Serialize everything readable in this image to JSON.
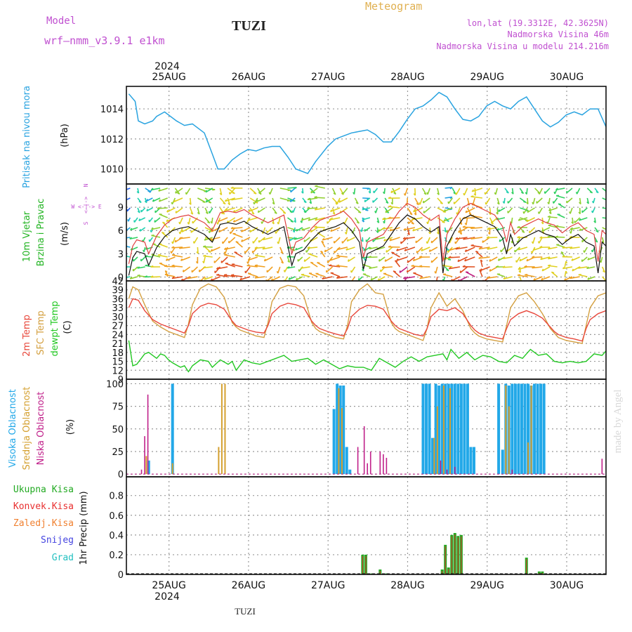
{
  "header": {
    "model_label": "Model",
    "model_name": "wrf–nmm_v3.9.1 e1km",
    "station": "TUZI",
    "title": "Meteogram",
    "coords": "lon,lat (19.3312E, 42.3625N)",
    "elevation": "Nadmorska Visina 46m",
    "model_elevation": "Nadmorska Visina u modelu 214.216m",
    "watermark": "made by Angel",
    "footer_station": "TUZI",
    "year": "2024"
  },
  "colors": {
    "pressure": "#29a3e0",
    "wind_title": "#22b422",
    "temp2m": "#e8483c",
    "sfc": "#d4a040",
    "dewpt": "#22c822",
    "high_cloud": "#22a8e8",
    "mid_cloud": "#d4a030",
    "low_cloud": "#c0208a",
    "total_precip": "#22aa22",
    "conv_precip": "#e83030",
    "frz_precip": "#f08030",
    "snow": "#4444e0",
    "hail": "#22c0c0",
    "header_purple": "#c050d0",
    "header_gold": "#e0b050",
    "grid": "#999999"
  },
  "chart_data": [
    {
      "panel": "pressure",
      "type": "line",
      "ylabel": "(hPa)",
      "title": "Pritisak na nivou mora",
      "ylim": [
        1009,
        1015.5
      ],
      "yticks": [
        1010,
        1012,
        1014
      ],
      "categories": [
        "25AUG",
        "26AUG",
        "27AUG",
        "28AUG",
        "29AUG",
        "30AUG"
      ],
      "x_range_days": [
        24.47,
        30.5
      ],
      "series": [
        {
          "x": [
            24.5,
            24.58,
            24.62,
            24.7,
            24.8,
            24.85,
            24.95,
            25.1,
            25.2,
            25.3,
            25.45,
            25.55,
            25.62,
            25.7,
            25.8,
            25.9,
            26.0,
            26.1,
            26.2,
            26.3,
            26.4,
            26.5,
            26.6,
            26.75,
            26.85,
            27.0,
            27.1,
            27.2,
            27.3,
            27.4,
            27.5,
            27.6,
            27.7,
            27.8,
            27.9,
            28.0,
            28.1,
            28.2,
            28.3,
            28.4,
            28.5,
            28.6,
            28.7,
            28.8,
            28.9,
            29.0,
            29.1,
            29.2,
            29.3,
            29.4,
            29.5,
            29.6,
            29.7,
            29.8,
            29.9,
            30.0,
            30.1,
            30.2,
            30.3,
            30.4,
            30.5
          ],
          "values": [
            1015.0,
            1014.5,
            1013.2,
            1013.0,
            1013.2,
            1013.5,
            1013.8,
            1013.2,
            1012.9,
            1013.0,
            1012.4,
            1011.0,
            1010.0,
            1010.0,
            1010.6,
            1011.0,
            1011.3,
            1011.2,
            1011.4,
            1011.5,
            1011.5,
            1010.8,
            1010.0,
            1009.7,
            1010.5,
            1011.5,
            1012.0,
            1012.2,
            1012.4,
            1012.5,
            1012.6,
            1012.3,
            1011.8,
            1011.8,
            1012.5,
            1013.3,
            1014.0,
            1014.2,
            1014.6,
            1015.1,
            1014.8,
            1014.0,
            1013.3,
            1013.2,
            1013.5,
            1014.2,
            1014.5,
            1014.2,
            1014.0,
            1014.5,
            1014.8,
            1014.0,
            1013.2,
            1012.8,
            1013.1,
            1013.6,
            1013.8,
            1013.6,
            1014.0,
            1014.0,
            1012.8
          ]
        }
      ]
    },
    {
      "panel": "wind",
      "type": "line",
      "ylabel": "(m/s)",
      "title": "10m Vjetar Brzina i Pravac",
      "compass": "W <-|-> E",
      "compass_n": "N",
      "compass_s": "S",
      "ylim": [
        -0.5,
        12
      ],
      "yticks": [
        0,
        3,
        6,
        9
      ],
      "x_range_days": [
        24.47,
        30.5
      ],
      "series": [
        {
          "name": "speed",
          "x": [
            24.5,
            24.55,
            24.6,
            24.7,
            24.75,
            24.85,
            24.95,
            25.05,
            25.15,
            25.25,
            25.35,
            25.45,
            25.55,
            25.65,
            25.75,
            25.85,
            25.95,
            26.05,
            26.15,
            26.25,
            26.35,
            26.45,
            26.55,
            26.6,
            26.7,
            26.8,
            26.9,
            27.0,
            27.1,
            27.2,
            27.3,
            27.4,
            27.45,
            27.5,
            27.6,
            27.7,
            27.8,
            27.9,
            28.0,
            28.1,
            28.2,
            28.3,
            28.4,
            28.45,
            28.5,
            28.6,
            28.7,
            28.8,
            28.9,
            29.0,
            29.1,
            29.2,
            29.25,
            29.3,
            29.35,
            29.45,
            29.55,
            29.65,
            29.75,
            29.85,
            29.95,
            30.05,
            30.15,
            30.25,
            30.35,
            30.4,
            30.45,
            30.5
          ],
          "values": [
            0.2,
            2.5,
            3.3,
            3.0,
            1.5,
            3.8,
            5.2,
            6.0,
            6.3,
            6.5,
            6.0,
            5.5,
            4.5,
            6.8,
            7.0,
            6.8,
            7.2,
            6.5,
            6.0,
            5.5,
            6.0,
            6.5,
            1.5,
            3.0,
            3.5,
            4.8,
            5.8,
            6.2,
            6.5,
            7.0,
            6.0,
            4.5,
            1.0,
            3.0,
            3.5,
            4.0,
            5.5,
            7.0,
            8.0,
            7.5,
            6.5,
            5.8,
            6.5,
            0.5,
            4.0,
            6.0,
            7.5,
            8.0,
            7.5,
            7.0,
            6.5,
            5.0,
            3.0,
            5.5,
            4.0,
            5.0,
            5.5,
            6.0,
            5.5,
            5.2,
            4.2,
            5.0,
            5.5,
            4.5,
            4.0,
            0.5,
            4.5,
            4.0
          ]
        }
      ]
    },
    {
      "panel": "temperature",
      "type": "line",
      "ylabel": "(C)",
      "legend": [
        "2m Temp",
        "SFC Temp",
        "dewpt Temp"
      ],
      "ylim": [
        9,
        42
      ],
      "yticks": [
        9,
        12,
        15,
        18,
        21,
        24,
        27,
        30,
        33,
        36,
        39,
        42
      ],
      "x_range_days": [
        24.47,
        30.5
      ],
      "series": [
        {
          "name": "2m Temp",
          "x": [
            24.5,
            24.55,
            24.62,
            24.7,
            24.8,
            24.9,
            25.0,
            25.1,
            25.2,
            25.25,
            25.3,
            25.4,
            25.5,
            25.6,
            25.7,
            25.8,
            25.85,
            25.9,
            26.0,
            26.1,
            26.2,
            26.25,
            26.3,
            26.4,
            26.5,
            26.6,
            26.7,
            26.8,
            26.85,
            26.9,
            27.0,
            27.1,
            27.2,
            27.25,
            27.3,
            27.4,
            27.5,
            27.6,
            27.7,
            27.8,
            27.85,
            27.9,
            28.0,
            28.1,
            28.2,
            28.25,
            28.3,
            28.4,
            28.5,
            28.6,
            28.7,
            28.8,
            28.85,
            28.9,
            29.0,
            29.1,
            29.2,
            29.25,
            29.3,
            29.4,
            29.5,
            29.6,
            29.7,
            29.8,
            29.85,
            29.9,
            30.0,
            30.1,
            30.2,
            30.25,
            30.3,
            30.4,
            30.5
          ],
          "values": [
            33.0,
            36.0,
            35.5,
            32.0,
            29.0,
            27.5,
            26.5,
            25.5,
            24.5,
            27.0,
            31.0,
            33.5,
            34.5,
            34.0,
            32.5,
            28.5,
            27.0,
            26.5,
            25.5,
            24.8,
            24.5,
            27.0,
            31.0,
            33.5,
            34.5,
            34.0,
            33.0,
            28.5,
            27.0,
            26.0,
            25.0,
            24.2,
            23.5,
            26.0,
            30.0,
            32.5,
            33.8,
            33.5,
            32.5,
            28.5,
            27.0,
            26.0,
            25.0,
            24.0,
            23.5,
            26.0,
            30.0,
            32.5,
            32.0,
            33.0,
            31.0,
            27.0,
            25.5,
            24.5,
            23.5,
            23.0,
            22.5,
            26.0,
            29.0,
            31.0,
            32.0,
            31.0,
            29.5,
            26.5,
            25.0,
            24.0,
            23.0,
            22.5,
            21.8,
            26.0,
            29.0,
            31.0,
            32.0
          ]
        },
        {
          "name": "SFC Temp",
          "x": [
            24.5,
            24.55,
            24.62,
            24.7,
            24.8,
            24.9,
            25.0,
            25.1,
            25.2,
            25.25,
            25.3,
            25.4,
            25.5,
            25.6,
            25.7,
            25.8,
            25.85,
            25.9,
            26.0,
            26.1,
            26.2,
            26.25,
            26.3,
            26.4,
            26.5,
            26.6,
            26.7,
            26.8,
            26.85,
            26.9,
            27.0,
            27.1,
            27.2,
            27.25,
            27.3,
            27.4,
            27.5,
            27.6,
            27.7,
            27.8,
            27.85,
            27.9,
            28.0,
            28.1,
            28.2,
            28.25,
            28.3,
            28.4,
            28.5,
            28.6,
            28.7,
            28.8,
            28.85,
            28.9,
            29.0,
            29.1,
            29.2,
            29.25,
            29.3,
            29.4,
            29.5,
            29.6,
            29.7,
            29.8,
            29.85,
            29.9,
            30.0,
            30.1,
            30.2,
            30.25,
            30.3,
            30.4,
            30.5
          ],
          "values": [
            36.0,
            40.0,
            39.0,
            34.0,
            28.5,
            26.5,
            25.0,
            24.0,
            23.0,
            27.5,
            34.0,
            39.5,
            41.0,
            40.0,
            36.5,
            28.0,
            26.5,
            25.5,
            24.5,
            23.5,
            23.0,
            28.0,
            35.0,
            39.5,
            40.5,
            40.0,
            37.0,
            28.0,
            26.0,
            25.0,
            24.0,
            23.0,
            22.5,
            27.0,
            35.0,
            39.0,
            41.0,
            38.0,
            37.5,
            28.0,
            26.0,
            25.0,
            24.0,
            23.0,
            22.0,
            26.0,
            33.0,
            38.0,
            33.5,
            36.0,
            32.0,
            26.0,
            24.5,
            23.5,
            22.5,
            22.0,
            21.5,
            27.0,
            33.0,
            37.0,
            38.0,
            35.0,
            31.0,
            26.0,
            24.5,
            23.0,
            22.0,
            21.5,
            21.0,
            27.0,
            33.0,
            37.0,
            38.0
          ]
        },
        {
          "name": "dewpt Temp",
          "x": [
            24.5,
            24.55,
            24.6,
            24.7,
            24.75,
            24.85,
            24.9,
            24.95,
            25.0,
            25.05,
            25.15,
            25.2,
            25.25,
            25.3,
            25.4,
            25.5,
            25.55,
            25.65,
            25.75,
            25.8,
            25.85,
            25.95,
            26.05,
            26.15,
            26.25,
            26.35,
            26.45,
            26.55,
            26.65,
            26.75,
            26.85,
            26.95,
            27.05,
            27.15,
            27.25,
            27.35,
            27.45,
            27.55,
            27.65,
            27.75,
            27.85,
            27.95,
            28.05,
            28.15,
            28.25,
            28.35,
            28.45,
            28.5,
            28.55,
            28.65,
            28.75,
            28.85,
            28.95,
            29.05,
            29.15,
            29.25,
            29.35,
            29.45,
            29.55,
            29.65,
            29.75,
            29.85,
            29.95,
            30.05,
            30.15,
            30.25,
            30.35,
            30.45,
            30.5
          ],
          "values": [
            22.0,
            13.5,
            14.0,
            17.5,
            18.0,
            16.0,
            17.5,
            17.0,
            15.5,
            14.5,
            13.0,
            13.5,
            11.5,
            13.5,
            15.5,
            15.0,
            13.0,
            15.5,
            14.0,
            15.0,
            12.0,
            15.5,
            14.5,
            14.0,
            15.0,
            16.0,
            17.0,
            15.0,
            15.5,
            16.0,
            14.0,
            15.5,
            14.0,
            12.5,
            13.5,
            13.0,
            13.0,
            12.0,
            16.0,
            14.5,
            13.0,
            15.0,
            16.5,
            15.0,
            16.5,
            17.0,
            17.5,
            15.5,
            19.0,
            16.0,
            18.0,
            15.5,
            17.0,
            16.5,
            15.0,
            14.5,
            17.0,
            16.0,
            19.0,
            17.0,
            17.5,
            15.0,
            14.5,
            15.0,
            14.5,
            15.0,
            17.5,
            17.0,
            18.5
          ]
        }
      ]
    },
    {
      "panel": "clouds",
      "type": "bar",
      "ylabel": "(%)",
      "legend": [
        "Visoka Oblacnost",
        "Srednja Oblacnost",
        "Niska Oblacnost"
      ],
      "ylim": [
        -3,
        105
      ],
      "yticks": [
        0,
        25,
        50,
        75,
        100
      ],
      "x_range_days": [
        24.47,
        30.5
      ],
      "series": [
        {
          "name": "Visoka Oblacnost",
          "x": [
            24.75,
            25.05,
            27.08,
            27.12,
            27.16,
            27.2,
            27.24,
            27.28,
            28.2,
            28.24,
            28.28,
            28.32,
            28.36,
            28.4,
            28.44,
            28.48,
            28.52,
            28.56,
            28.6,
            28.64,
            28.68,
            28.72,
            28.76,
            28.8,
            28.84,
            29.15,
            29.2,
            29.24,
            29.28,
            29.32,
            29.36,
            29.4,
            29.44,
            29.48,
            29.52,
            29.56,
            29.6,
            29.64,
            29.68,
            29.72
          ],
          "values": [
            15,
            100,
            72,
            100,
            98,
            98,
            30,
            5,
            100,
            100,
            100,
            40,
            100,
            98,
            100,
            100,
            100,
            100,
            100,
            100,
            100,
            100,
            100,
            30,
            30,
            100,
            27,
            100,
            98,
            100,
            100,
            100,
            100,
            100,
            100,
            98,
            100,
            100,
            100,
            100
          ]
        },
        {
          "name": "Srednja Oblacnost",
          "x": [
            24.72,
            25.05,
            25.63,
            25.67,
            25.71,
            27.14,
            27.18,
            28.34,
            28.38,
            28.46,
            28.54,
            29.24,
            29.28,
            29.52,
            29.56
          ],
          "values": [
            20,
            12,
            30,
            100,
            100,
            95,
            73,
            40,
            75,
            98,
            95,
            98,
            75,
            35,
            98
          ]
        },
        {
          "name": "Niska Oblacnost",
          "x": [
            24.66,
            24.7,
            24.74,
            27.38,
            27.46,
            27.5,
            27.54,
            27.66,
            27.7,
            27.74,
            28.42,
            28.5,
            28.6,
            29.32,
            30.45
          ],
          "values": [
            5,
            42,
            88,
            30,
            53,
            12,
            25,
            25,
            22,
            18,
            15,
            5,
            8,
            5,
            17
          ]
        }
      ]
    },
    {
      "panel": "precipitation",
      "type": "bar",
      "ylabel": "1hr Precip (mm)",
      "legend": [
        "Ukupna Kisa",
        "Konvek.Kisa",
        "Zaledj.Kisa",
        "Snijeg",
        "Grad"
      ],
      "ylim": [
        0,
        0.99
      ],
      "yticks": [
        0,
        0.2,
        0.4,
        0.6,
        0.8
      ],
      "categories": [
        "25AUG",
        "26AUG",
        "27AUG",
        "28AUG",
        "29AUG",
        "30AUG"
      ],
      "x_range_days": [
        24.47,
        30.5
      ],
      "series": [
        {
          "name": "Ukupna Kisa",
          "x": [
            27.44,
            27.48,
            27.52,
            27.56,
            27.66,
            27.74,
            28.44,
            28.48,
            28.52,
            28.56,
            28.6,
            28.64,
            28.68,
            29.5,
            29.55,
            29.66,
            29.7
          ],
          "values": [
            0.2,
            0.2,
            0.01,
            0.01,
            0.05,
            0.01,
            0.05,
            0.3,
            0.07,
            0.4,
            0.42,
            0.39,
            0.4,
            0.17,
            0.01,
            0.03,
            0.03
          ]
        }
      ]
    }
  ]
}
